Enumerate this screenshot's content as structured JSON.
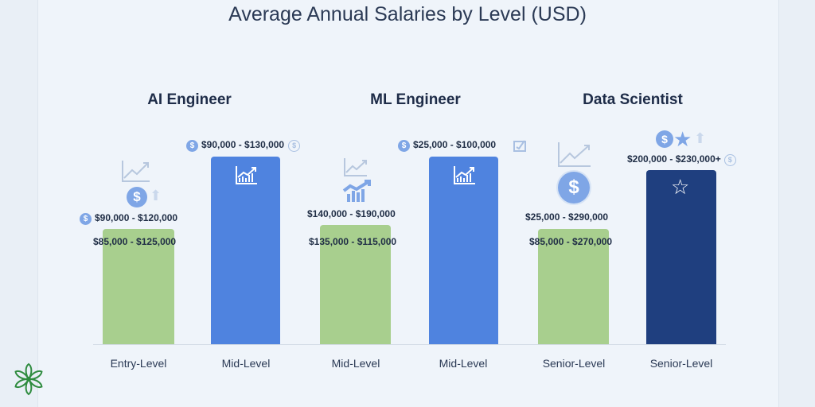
{
  "chart_data": {
    "type": "bar",
    "title": "Average Annual Salaries by Level (USD)",
    "groups": [
      {
        "name": "AI Engineer",
        "bars": [
          {
            "category": "Entry-Level",
            "label_top": "$90,000 - $120,000",
            "label_inner": "$85,000 - $125,000",
            "color": "#a8cf8e"
          },
          {
            "category": "Mid-Level",
            "label_top": "$90,000 - $130,000",
            "color": "#4f83df"
          }
        ]
      },
      {
        "name": "ML Engineer",
        "bars": [
          {
            "category": "Mid-Level",
            "label_top": "$140,000 - $190,000",
            "label_inner": "$135,000 - $115,000",
            "color": "#a8cf8e"
          },
          {
            "category": "Mid-Level",
            "label_top": "$25,000 - $100,000",
            "color": "#4f83df"
          }
        ]
      },
      {
        "name": "Data Scientist",
        "bars": [
          {
            "category": "Senior-Level",
            "label_top": "$25,000 - $290,000",
            "label_inner": "$85,000 - $270,000",
            "color": "#a8cf8e"
          },
          {
            "category": "Senior-Level",
            "label_top": "$200,000 - $230,000+",
            "color": "#1f3f7f"
          }
        ]
      }
    ],
    "legend": "none",
    "grid": false
  },
  "icons": {
    "coin": "$",
    "star": "★",
    "star_outline": "☆",
    "arrow_up": "⬆"
  },
  "logo": "flower-logo"
}
